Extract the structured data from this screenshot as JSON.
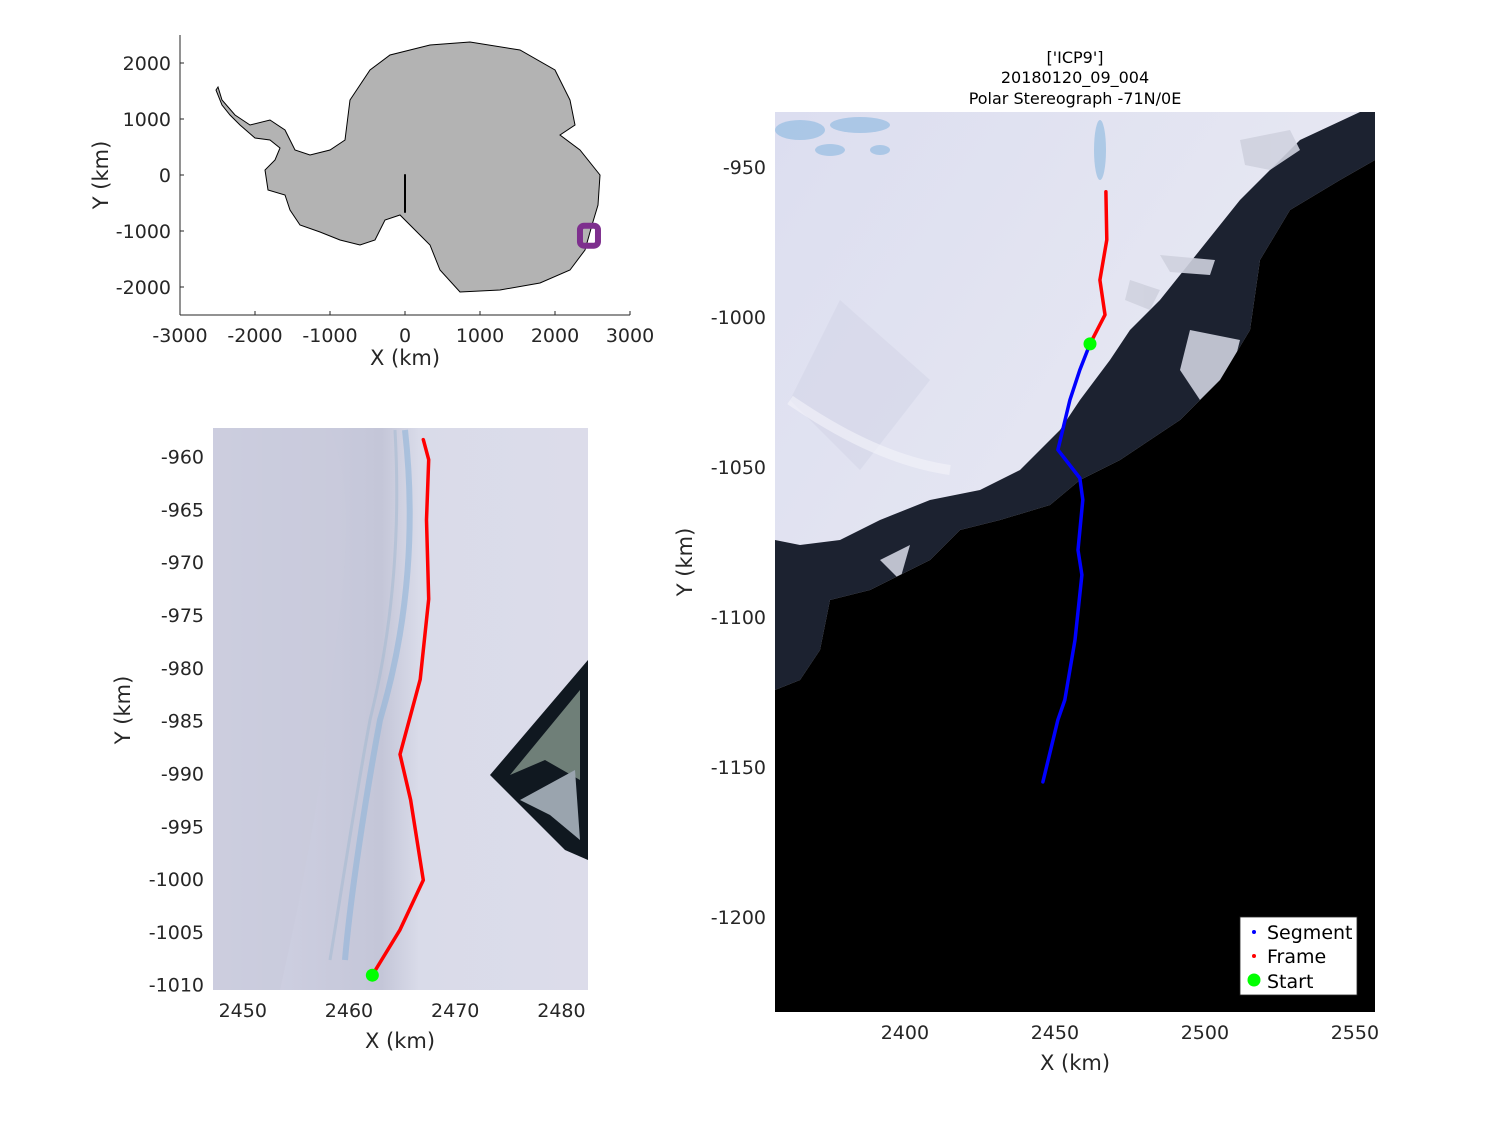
{
  "colors": {
    "segment": "#0000ff",
    "frame": "#ff0000",
    "start": "#00ff00",
    "marker": "#7e2f8e",
    "land": "#b3b3b3",
    "ocean": "#000000"
  },
  "chart_data": [
    {
      "type": "line",
      "title": "",
      "xlabel": "X (km)",
      "ylabel": "Y (km)",
      "xlim": [
        -3000,
        3000
      ],
      "ylim": [
        -2500,
        2500
      ],
      "xticks": [
        -3000,
        -2000,
        -1000,
        0,
        1000,
        2000,
        3000
      ],
      "yticks": [
        -2000,
        -1000,
        0,
        1000,
        2000
      ],
      "background": "Antarctica outline (gray land)",
      "series": [
        {
          "name": "",
          "color": "#000000",
          "x": [
            0,
            0
          ],
          "y": [
            0,
            -660
          ]
        },
        {
          "name": "",
          "color": "#7e2f8e",
          "marker": "square",
          "x": [
            2453
          ],
          "y": [
            -1084
          ]
        }
      ]
    },
    {
      "type": "line",
      "title": "",
      "xlabel": "X (km)",
      "ylabel": "Y (km)",
      "xlim": [
        2447.2,
        2482.5
      ],
      "ylim": [
        -1010.5,
        -957.3
      ],
      "xticks": [
        2450,
        2460,
        2470,
        2480
      ],
      "yticks": [
        -960,
        -965,
        -970,
        -975,
        -980,
        -985,
        -990,
        -995,
        -1000,
        -1005,
        -1010
      ],
      "background": "satellite image",
      "series": [
        {
          "name": "Frame",
          "color": "#ff0000",
          "x": [
            2467.0,
            2467.5,
            2467.3,
            2467.5,
            2466.7,
            2464.8,
            2465.8,
            2467.0,
            2464.8,
            2462.2
          ],
          "y": [
            -958.4,
            -960.3,
            -966.0,
            -973.5,
            -981.1,
            -988.2,
            -992.5,
            -1000.1,
            -1004.8,
            -1009.1
          ]
        },
        {
          "name": "Start",
          "color": "#00ff00",
          "marker": "circle",
          "x": [
            2462.2
          ],
          "y": [
            -1009.1
          ]
        }
      ]
    },
    {
      "type": "line",
      "title": [
        "['ICP9']",
        "20180120_09_004",
        "Polar Stereograph -71N/0E"
      ],
      "xlabel": "X (km)",
      "ylabel": "Y (km)",
      "xlim": [
        2356.7,
        2556.7
      ],
      "ylim": [
        -1231.7,
        -931.7
      ],
      "xticks": [
        2400,
        2450,
        2500,
        2550
      ],
      "yticks": [
        -950,
        -1000,
        -1050,
        -1100,
        -1150,
        -1200
      ],
      "background": "satellite image",
      "legend": {
        "position": "bottom-right",
        "entries": [
          "Segment",
          "Frame",
          "Start"
        ]
      },
      "series": [
        {
          "name": "Segment",
          "color": "#0000ff",
          "x": [
            2461.7,
            2458.3,
            2455.0,
            2451.0,
            2458.3,
            2459.3,
            2457.7,
            2459.0,
            2456.7,
            2453.3,
            2451.0,
            2446.0
          ],
          "y": [
            -1009.0,
            -1017.7,
            -1027.7,
            -1044.3,
            -1053.7,
            -1061.0,
            -1077.7,
            -1086.0,
            -1107.7,
            -1127.7,
            -1134.3,
            -1155.0
          ]
        },
        {
          "name": "Frame",
          "color": "#ff0000",
          "x": [
            2467.0,
            2467.3,
            2465.0,
            2466.7,
            2461.7
          ],
          "y": [
            -958.3,
            -974.3,
            -987.7,
            -999.3,
            -1009.0
          ]
        },
        {
          "name": "Start",
          "color": "#00ff00",
          "marker": "circle",
          "x": [
            2461.7
          ],
          "y": [
            -1009.0
          ]
        }
      ]
    }
  ]
}
